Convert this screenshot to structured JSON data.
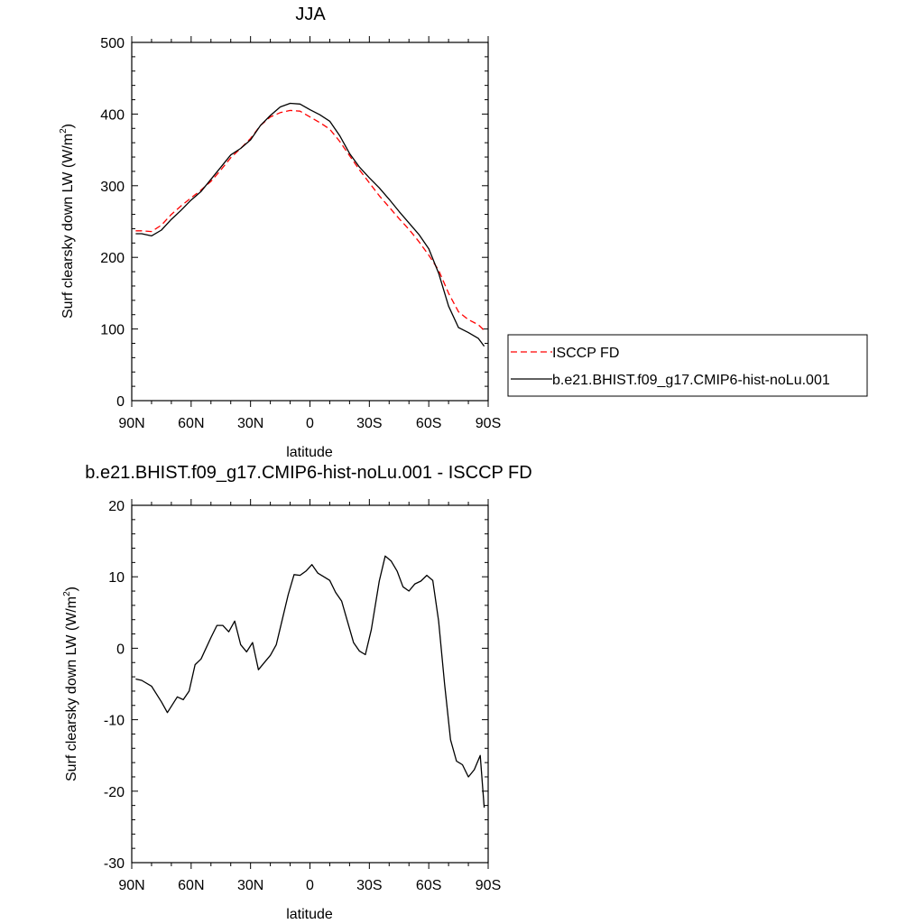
{
  "chart_data": [
    {
      "type": "line",
      "title": "JJA",
      "xlabel": "latitude",
      "ylabel": "Surf clearsky down LW (W/m",
      "ylabel_sup": "2",
      "ylabel_end": ")",
      "xlim": [
        90,
        -90
      ],
      "ylim": [
        0,
        500
      ],
      "yticks": [
        0,
        100,
        200,
        300,
        400,
        500
      ],
      "xticks": [
        {
          "value": 90,
          "label": "90N"
        },
        {
          "value": 60,
          "label": "60N"
        },
        {
          "value": 30,
          "label": "30N"
        },
        {
          "value": 0,
          "label": "0"
        },
        {
          "value": -30,
          "label": "30S"
        },
        {
          "value": -60,
          "label": "60S"
        },
        {
          "value": -90,
          "label": "90S"
        }
      ],
      "legend": {
        "placement": "right-of-plot-bottom"
      },
      "series": [
        {
          "name": "ISCCP FD",
          "color": "#ff0000",
          "dash": "dashed",
          "x": [
            88,
            85,
            80,
            75,
            70,
            65,
            60,
            55,
            50,
            45,
            40,
            35,
            30,
            25,
            20,
            15,
            10,
            5,
            0,
            -5,
            -10,
            -15,
            -20,
            -25,
            -30,
            -35,
            -40,
            -45,
            -50,
            -55,
            -60,
            -65,
            -70,
            -75,
            -80,
            -85,
            -88
          ],
          "y": [
            237,
            237,
            236,
            245,
            260,
            272,
            283,
            294,
            306,
            322,
            339,
            352,
            366,
            384,
            396,
            402,
            405,
            404,
            396,
            388,
            379,
            362,
            342,
            322,
            304,
            286,
            270,
            254,
            239,
            222,
            203,
            182,
            150,
            124,
            113,
            106,
            98
          ]
        },
        {
          "name": "b.e21.BHIST.f09_g17.CMIP6-hist-noLu.001",
          "color": "#000000",
          "dash": "solid",
          "x": [
            88,
            85,
            80,
            75,
            70,
            65,
            60,
            55,
            50,
            45,
            40,
            35,
            30,
            25,
            20,
            15,
            10,
            5,
            0,
            -5,
            -10,
            -15,
            -20,
            -25,
            -30,
            -35,
            -40,
            -45,
            -50,
            -55,
            -60,
            -65,
            -70,
            -75,
            -80,
            -85,
            -88
          ],
          "y": [
            233,
            233,
            230,
            238,
            253,
            266,
            280,
            292,
            309,
            326,
            343,
            352,
            364,
            384,
            398,
            410,
            415,
            414,
            406,
            399,
            390,
            370,
            345,
            326,
            311,
            297,
            281,
            264,
            248,
            232,
            212,
            178,
            132,
            102,
            95,
            87,
            76
          ]
        }
      ]
    },
    {
      "type": "line",
      "title": "b.e21.BHIST.f09_g17.CMIP6-hist-noLu.001 - ISCCP FD",
      "xlabel": "latitude",
      "ylabel": "Surf clearsky down LW (W/m",
      "ylabel_sup": "2",
      "ylabel_end": ")",
      "xlim": [
        90,
        -90
      ],
      "ylim": [
        -30,
        20
      ],
      "yticks": [
        -30,
        -20,
        -10,
        0,
        10,
        20
      ],
      "xticks": [
        {
          "value": 90,
          "label": "90N"
        },
        {
          "value": 60,
          "label": "60N"
        },
        {
          "value": 30,
          "label": "30N"
        },
        {
          "value": 0,
          "label": "0"
        },
        {
          "value": -30,
          "label": "30S"
        },
        {
          "value": -60,
          "label": "60S"
        },
        {
          "value": -90,
          "label": "90S"
        }
      ],
      "series": [
        {
          "color": "#000000",
          "dash": "solid",
          "x": [
            88,
            85,
            80,
            75,
            72,
            67,
            64,
            61,
            58,
            55,
            50,
            47,
            44,
            41,
            38,
            35,
            32,
            29,
            26,
            23,
            20,
            17,
            14,
            11,
            8,
            5,
            2,
            -1,
            -4,
            -7,
            -10,
            -13,
            -16,
            -19,
            -22,
            -25,
            -28,
            -31,
            -35,
            -38,
            -41,
            -44,
            -47,
            -50,
            -53,
            -56,
            -59,
            -62,
            -65,
            -68,
            -71,
            -74,
            -77,
            -80,
            -83,
            -86,
            -88
          ],
          "y": [
            -4.3,
            -4.5,
            -5.3,
            -7.5,
            -9.0,
            -6.8,
            -7.2,
            -6.0,
            -2.3,
            -1.5,
            1.5,
            3.2,
            3.2,
            2.3,
            3.8,
            0.5,
            -0.5,
            0.8,
            -3.0,
            -2.0,
            -1.0,
            0.5,
            4.0,
            7.5,
            10.3,
            10.2,
            10.8,
            11.7,
            10.5,
            10.0,
            9.5,
            7.8,
            6.6,
            3.7,
            0.8,
            -0.4,
            -0.9,
            2.6,
            9.4,
            12.9,
            12.2,
            10.8,
            8.6,
            8.0,
            9.0,
            9.4,
            10.2,
            9.5,
            3.8,
            -5.0,
            -12.8,
            -15.8,
            -16.3,
            -18.0,
            -17.0,
            -15.0,
            -22.3
          ]
        }
      ]
    }
  ]
}
